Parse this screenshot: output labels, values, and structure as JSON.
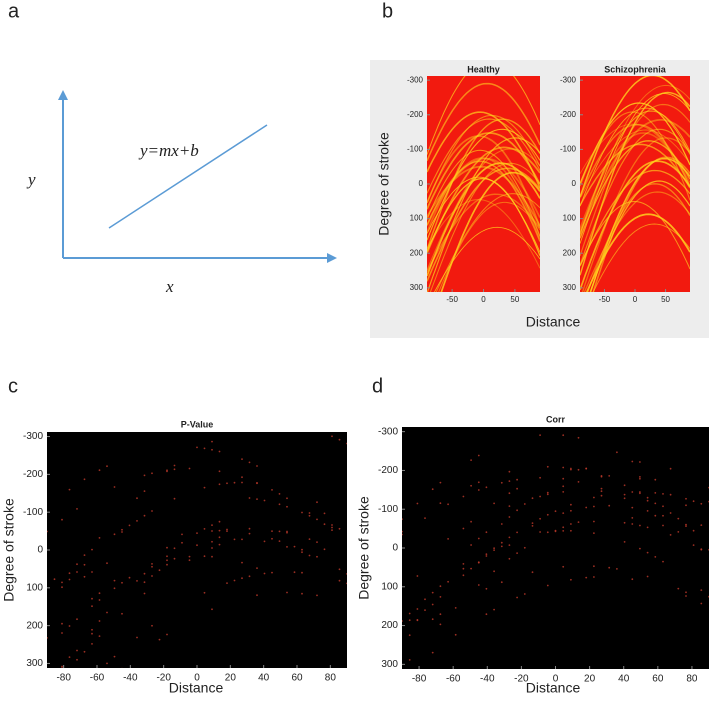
{
  "figure": {
    "panel_labels": [
      "a",
      "b",
      "c",
      "d"
    ],
    "diagram": {
      "equation": "y=mx+b",
      "x_label": "x",
      "y_label": "y"
    }
  },
  "chart_data": [
    {
      "type": "heatmap",
      "title": "Healthy",
      "ylabel": "Degree of stroke",
      "xlabel": "Distance",
      "background": "#f21a0f",
      "trace": "#ffd21e",
      "xlim": [
        -90,
        90
      ],
      "ylim": [
        -312,
        312
      ],
      "xticks": [
        -50,
        0,
        50
      ],
      "yticks": [
        -300,
        -200,
        -100,
        0,
        100,
        200,
        300
      ]
    },
    {
      "type": "heatmap",
      "title": "Schizophrenia",
      "background": "#f21a0f",
      "trace": "#ffd21e",
      "xlim": [
        -90,
        90
      ],
      "ylim": [
        -312,
        312
      ],
      "xticks": [
        -50,
        0,
        50
      ],
      "yticks": [
        -300,
        -200,
        -100,
        0,
        100,
        200,
        300
      ]
    },
    {
      "type": "heatmap",
      "title": "P-Value",
      "ylabel": "Degree of stroke",
      "xlabel": "Distance",
      "background": "#000000",
      "trace": "#c0392b",
      "xlim": [
        -90,
        90
      ],
      "ylim": [
        -312,
        312
      ],
      "xticks": [
        -80,
        -60,
        -40,
        -20,
        0,
        20,
        40,
        60,
        80
      ],
      "yticks": [
        -300,
        -200,
        -100,
        0,
        100,
        200,
        300
      ]
    },
    {
      "type": "heatmap",
      "title": "Corr",
      "ylabel": "Degree of stroke",
      "xlabel": "Distance",
      "background": "#000000",
      "trace": "#c0392b",
      "xlim": [
        -90,
        90
      ],
      "ylim": [
        -312,
        312
      ],
      "xticks": [
        -80,
        -60,
        -40,
        -20,
        0,
        20,
        40,
        60,
        80
      ],
      "yticks": [
        -300,
        -200,
        -100,
        0,
        100,
        200,
        300
      ]
    }
  ]
}
